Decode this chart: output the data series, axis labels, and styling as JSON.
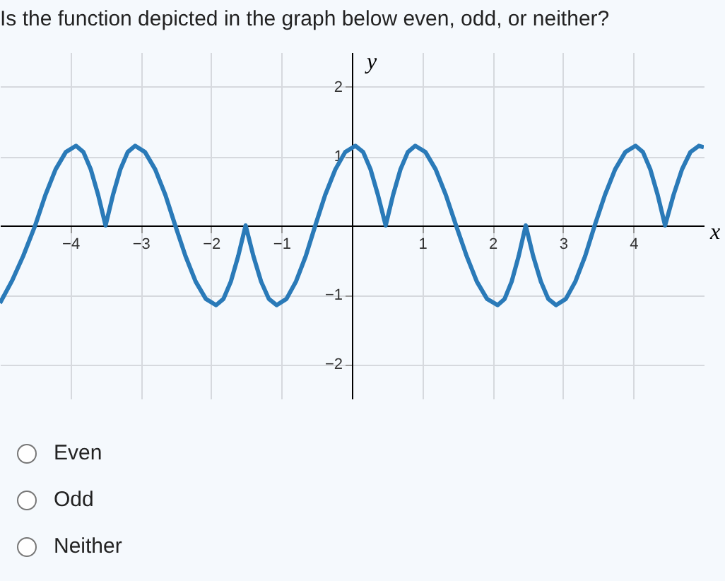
{
  "chart_data": {
    "type": "line",
    "title": "Is the function depicted in the graph below even, odd, or neither?",
    "xlabel": "x",
    "ylabel": "y",
    "xlim": [
      -5,
      5
    ],
    "ylim": [
      -2.5,
      2.5
    ],
    "xticks": [
      -4,
      -3,
      -2,
      -1,
      1,
      2,
      3,
      4
    ],
    "yticks": [
      -2,
      -1,
      1,
      2
    ],
    "grid": true,
    "annotations": [
      "Even",
      "Odd",
      "Neither"
    ],
    "series": [
      {
        "color": "#2a7ab8",
        "x": [
          -5,
          -4.83,
          -4.67,
          -4.5,
          -4.355,
          -4.21,
          -4.065,
          -3.92,
          -3.815,
          -3.71,
          -3.605,
          -3.5,
          -3.395,
          -3.29,
          -3.185,
          -3.08,
          -2.94,
          -2.795,
          -2.65,
          -2.51,
          -2.365,
          -2.22,
          -2.075,
          -1.93,
          -1.825,
          -1.72,
          -1.615,
          -1.51,
          -1.4,
          -1.29,
          -1.18,
          -1.07,
          -0.93,
          -0.795,
          -0.655,
          -0.52,
          -0.38,
          -0.235,
          -0.095,
          0.05,
          0.16,
          0.265,
          0.37,
          0.48,
          0.585,
          0.69,
          0.795,
          0.9,
          1.045,
          1.19,
          1.335,
          1.48,
          1.63,
          1.775,
          1.92,
          2.07,
          2.17,
          2.27,
          2.37,
          2.47,
          2.575,
          2.685,
          2.79,
          2.9,
          3.04,
          3.175,
          3.315,
          3.45,
          3.595,
          3.74,
          3.885,
          4.03,
          4.135,
          4.24,
          4.345,
          4.45,
          4.57,
          4.69,
          4.81,
          4.93,
          5
        ],
        "values": [
          -1.12,
          -0.8,
          -0.44,
          0,
          0.44,
          0.81,
          1.06,
          1.15,
          1.06,
          0.81,
          0.44,
          0,
          0.44,
          0.81,
          1.06,
          1.15,
          1.06,
          0.81,
          0.44,
          0,
          -0.44,
          -0.81,
          -1.06,
          -1.15,
          -1.06,
          -0.81,
          -0.44,
          0,
          -0.44,
          -0.81,
          -1.06,
          -1.15,
          -1.06,
          -0.81,
          -0.44,
          0,
          0.44,
          0.81,
          1.06,
          1.15,
          1.06,
          0.81,
          0.44,
          0,
          0.44,
          0.81,
          1.06,
          1.15,
          1.06,
          0.81,
          0.44,
          0,
          -0.44,
          -0.81,
          -1.06,
          -1.15,
          -1.06,
          -0.81,
          -0.44,
          0,
          -0.44,
          -0.81,
          -1.06,
          -1.15,
          -1.06,
          -0.81,
          -0.44,
          0,
          0.44,
          0.81,
          1.06,
          1.15,
          1.06,
          0.81,
          0.44,
          0,
          0.44,
          0.81,
          1.06,
          1.15,
          1.13
        ]
      }
    ]
  }
}
